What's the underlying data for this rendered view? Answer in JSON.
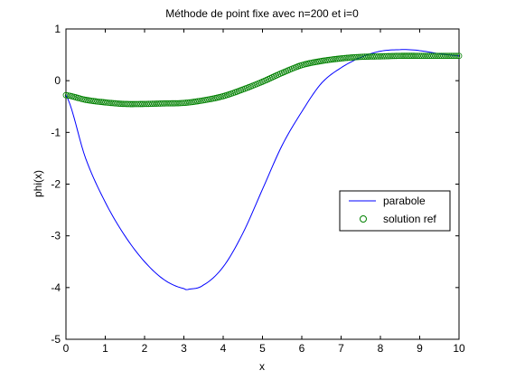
{
  "chart_data": {
    "type": "line",
    "title": "Méthode de point fixe avec n=200 et i=0",
    "xlabel": "x",
    "ylabel": "phi(x)",
    "xlim": [
      0,
      10
    ],
    "ylim": [
      -5,
      1
    ],
    "x_ticks": [
      "0",
      "1",
      "2",
      "3",
      "4",
      "5",
      "6",
      "7",
      "8",
      "9",
      "10"
    ],
    "y_ticks": [
      "1",
      "0",
      "-1",
      "-2",
      "-3",
      "-4",
      "-5"
    ],
    "grid": false,
    "legend_position": "right",
    "series": [
      {
        "name": "parabole",
        "style": "line",
        "color": "#0000ff",
        "x": [
          0,
          0.5,
          1,
          1.5,
          2,
          2.5,
          3,
          3.14,
          3.5,
          4,
          4.5,
          5,
          5.5,
          6,
          6.5,
          7,
          7.5,
          8,
          8.5,
          8.7,
          9,
          9.5,
          10
        ],
        "y": [
          -0.28,
          -1.5,
          -2.35,
          -3.0,
          -3.5,
          -3.85,
          -4.02,
          -4.03,
          -3.95,
          -3.6,
          -2.95,
          -2.1,
          -1.25,
          -0.6,
          -0.05,
          0.25,
          0.45,
          0.57,
          0.6,
          0.6,
          0.58,
          0.52,
          0.48
        ]
      },
      {
        "name": "solution ref",
        "style": "markers",
        "marker": "circle",
        "color": "#008000",
        "x": [
          0,
          0.5,
          1,
          1.5,
          2,
          2.5,
          3,
          3.5,
          4,
          4.5,
          5,
          5.5,
          6,
          6.5,
          7,
          7.5,
          8,
          8.5,
          9,
          9.5,
          10
        ],
        "y": [
          -0.28,
          -0.37,
          -0.42,
          -0.45,
          -0.45,
          -0.44,
          -0.43,
          -0.38,
          -0.3,
          -0.17,
          -0.02,
          0.15,
          0.3,
          0.38,
          0.43,
          0.46,
          0.47,
          0.48,
          0.48,
          0.48,
          0.48
        ]
      }
    ]
  }
}
